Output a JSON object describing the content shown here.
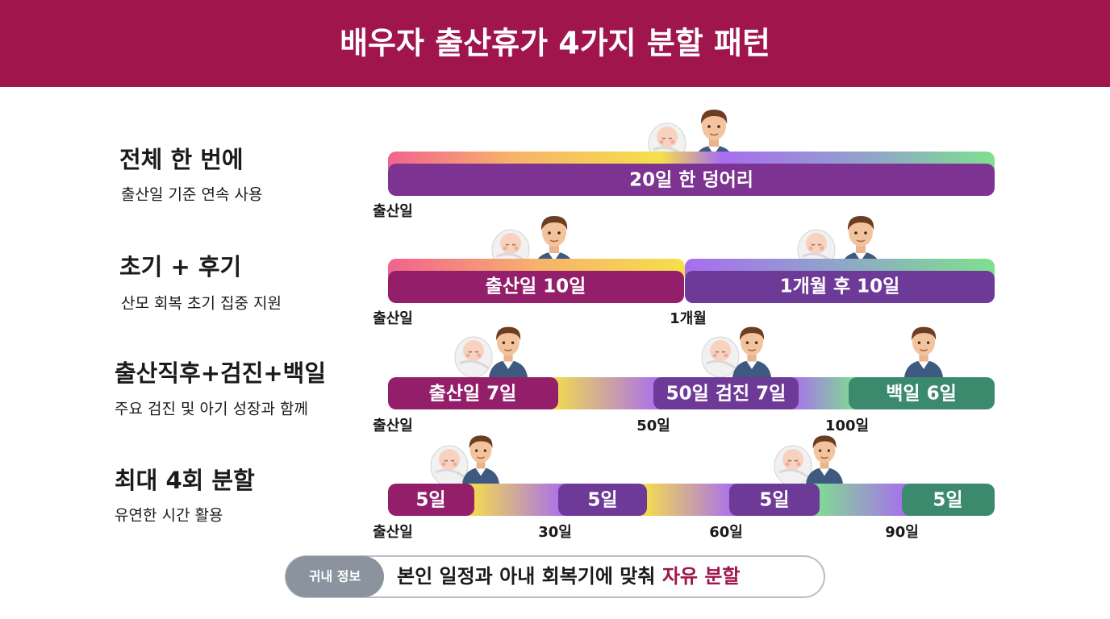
{
  "header": {
    "title": "배우자 출산휴가 4가지 분할 패턴"
  },
  "rows": [
    {
      "title": "전체 한 번에",
      "subtitle": "출산일 기준 연속 사용",
      "segments": [
        {
          "label": "20일 한 덩어리"
        }
      ],
      "markers": [
        "출산일"
      ]
    },
    {
      "title": "초기 + 후기",
      "subtitle": "산모 회복 초기 집중 지원",
      "segments": [
        {
          "label": "출산일 10일"
        },
        {
          "label": "1개월 후 10일"
        }
      ],
      "markers": [
        "출산일",
        "1개월"
      ]
    },
    {
      "title": "출산직후+검진+백일",
      "subtitle": "주요 검진 및 아기 성장과 함께",
      "segments": [
        {
          "label": "출산일 7일"
        },
        {
          "label": "50일 검진 7일"
        },
        {
          "label": "백일 6일"
        }
      ],
      "markers": [
        "출산일",
        "50일",
        "100일"
      ]
    },
    {
      "title": "최대 4회 분할",
      "subtitle": "유연한 시간 활용",
      "segments": [
        {
          "label": "5일"
        },
        {
          "label": "5일"
        },
        {
          "label": "5일"
        },
        {
          "label": "5일"
        }
      ],
      "markers": [
        "출산일",
        "30일",
        "60일",
        "90일"
      ]
    }
  ],
  "footer": {
    "badge": "귀내 정보",
    "text": "본인 일정과 아내 회복기에 맞춰",
    "highlight": "자유 분할"
  }
}
